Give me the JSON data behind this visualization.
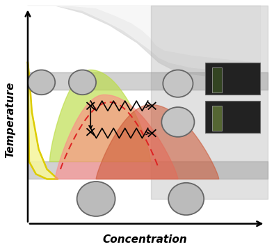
{
  "figsize": [
    3.94,
    3.58
  ],
  "dpi": 100,
  "bg_color": "#ffffff",
  "xlabel": "Concentration",
  "ylabel": "Temperature",
  "gray_band_color": "#999999",
  "gray_band_alpha": 0.45,
  "yellow_region_color": "#f5f5a0",
  "green_region_color": "#bbdd44",
  "green_region_alpha": 0.65,
  "red_region_color": "#ff8888",
  "red_region_alpha": 0.6,
  "dark_red_region_color": "#cc5533",
  "dark_red_region_alpha": 0.55,
  "spinodal_dashed_color": "#dd2222",
  "circle_edge_color": "#777777",
  "circle_face_color": "#bbbbbb",
  "arrow_color": "#000000",
  "photo_bg": "#222222",
  "photo_edge": "#666666"
}
